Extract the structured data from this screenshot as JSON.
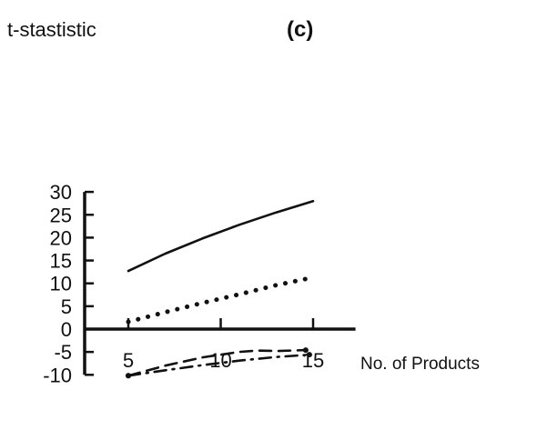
{
  "chart_data": {
    "type": "line",
    "title": "(c)",
    "xlabel": "No. of Products",
    "ylabel": "t-stastistic",
    "xlim": [
      3,
      17
    ],
    "ylim": [
      -10,
      30
    ],
    "xticks": [
      5,
      10,
      15
    ],
    "yticks": [
      30,
      25,
      20,
      15,
      10,
      5,
      0,
      -5,
      -10
    ],
    "grid": false,
    "legend": "none",
    "series": [
      {
        "style": "solid",
        "color": "#111111",
        "x": [
          5,
          7,
          9,
          11,
          13,
          15
        ],
        "y": [
          12.7,
          16.5,
          19.8,
          22.8,
          25.5,
          28.0
        ]
      },
      {
        "style": "dotted",
        "color": "#111111",
        "x": [
          5,
          7,
          9,
          11,
          13,
          15
        ],
        "y": [
          1.6,
          3.7,
          5.7,
          7.6,
          9.6,
          11.3
        ]
      },
      {
        "style": "dashed",
        "color": "#111111",
        "x": [
          5,
          7,
          9,
          11,
          12,
          13,
          14.6
        ],
        "y": [
          -10.2,
          -8.0,
          -6.2,
          -5.0,
          -4.7,
          -4.8,
          -4.6
        ]
      },
      {
        "style": "dashdot",
        "color": "#111111",
        "x": [
          5,
          7,
          9,
          11,
          13,
          14.8
        ],
        "y": [
          -10.2,
          -9.0,
          -7.9,
          -6.9,
          -6.1,
          -5.6
        ]
      }
    ]
  }
}
